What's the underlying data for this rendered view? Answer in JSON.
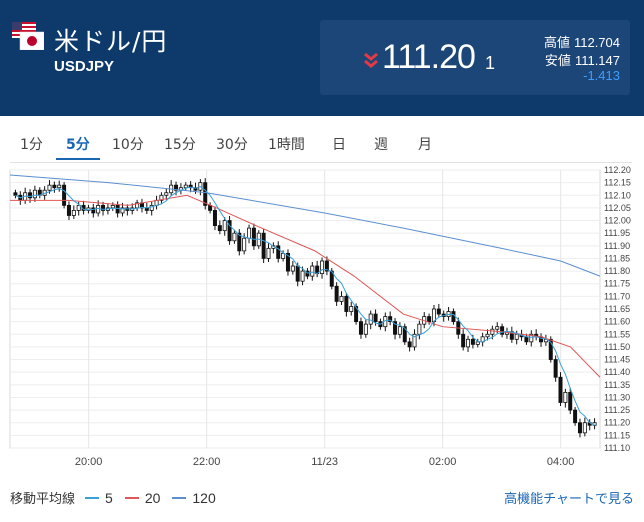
{
  "header": {
    "title": "米ドル/円",
    "code": "USDJPY",
    "flag_icon": "us-jp-flag-icon",
    "price_main": "111.20",
    "price_small": "1",
    "direction_icon": "double-chevron-down-icon",
    "high_label": "高値",
    "high_value": "112.704",
    "low_label": "安値",
    "low_value": "111.147",
    "change": "-1.413",
    "colors": {
      "background": "#0d3a6b",
      "panel": "#1c4677",
      "down": "#e63946",
      "change": "#3d9cff"
    }
  },
  "tabs": [
    {
      "label": "1分",
      "active": false
    },
    {
      "label": "5分",
      "active": true
    },
    {
      "label": "10分",
      "active": false
    },
    {
      "label": "15分",
      "active": false
    },
    {
      "label": "30分",
      "active": false
    },
    {
      "label": "1時間",
      "active": false
    },
    {
      "label": "日",
      "active": false
    },
    {
      "label": "週",
      "active": false
    },
    {
      "label": "月",
      "active": false
    }
  ],
  "chart_data": {
    "type": "candlestick",
    "y_ticks": [
      "112.20",
      "112.15",
      "112.10",
      "112.05",
      "112.00",
      "111.95",
      "111.90",
      "111.85",
      "111.80",
      "111.75",
      "111.70",
      "111.65",
      "111.60",
      "111.55",
      "111.50",
      "111.45",
      "111.40",
      "111.35",
      "111.30",
      "111.25",
      "111.20",
      "111.15",
      "111.10"
    ],
    "ylim": [
      111.1,
      112.2
    ],
    "x_ticks": [
      {
        "label": "20:00",
        "t": 16
      },
      {
        "label": "22:00",
        "t": 40
      },
      {
        "label": "11/23",
        "t": 64
      },
      {
        "label": "02:00",
        "t": 88
      },
      {
        "label": "04:00",
        "t": 112
      }
    ],
    "t_range": [
      0,
      120
    ],
    "grid": true,
    "colors": {
      "ma5": "#3aa0d8",
      "ma20": "#e05555",
      "ma120": "#5b8fd0"
    },
    "candles": {
      "closes": [
        112.1,
        112.08,
        112.11,
        112.09,
        112.12,
        112.1,
        112.12,
        112.14,
        112.13,
        112.14,
        112.06,
        112.02,
        112.04,
        112.06,
        112.04,
        112.05,
        112.03,
        112.06,
        112.04,
        112.05,
        112.06,
        112.03,
        112.05,
        112.04,
        112.05,
        112.07,
        112.05,
        112.04,
        112.06,
        112.08,
        112.1,
        112.11,
        112.14,
        112.12,
        112.13,
        112.14,
        112.13,
        112.12,
        112.15,
        112.06,
        112.04,
        111.98,
        111.96,
        112.0,
        111.92,
        111.95,
        111.88,
        111.93,
        111.97,
        111.9,
        111.95,
        111.85,
        111.89,
        111.9,
        111.85,
        111.87,
        111.8,
        111.82,
        111.76,
        111.8,
        111.78,
        111.82,
        111.79,
        111.84,
        111.8,
        111.74,
        111.68,
        111.7,
        111.64,
        111.66,
        111.6,
        111.55,
        111.59,
        111.63,
        111.6,
        111.58,
        111.62,
        111.6,
        111.55,
        111.58,
        111.52,
        111.5,
        111.55,
        111.59,
        111.62,
        111.6,
        111.65,
        111.63,
        111.62,
        111.64,
        111.6,
        111.55,
        111.5,
        111.53,
        111.51,
        111.52,
        111.54,
        111.55,
        111.57,
        111.58,
        111.55,
        111.56,
        111.53,
        111.55,
        111.54,
        111.52,
        111.55,
        111.54,
        111.52,
        111.53,
        111.45,
        111.38,
        111.28,
        111.32,
        111.25,
        111.2,
        111.16,
        111.2,
        111.19,
        111.2
      ]
    },
    "ma120": [
      [
        0,
        112.18
      ],
      [
        20,
        112.15
      ],
      [
        40,
        112.11
      ],
      [
        64,
        112.03
      ],
      [
        80,
        111.97
      ],
      [
        100,
        111.89
      ],
      [
        112,
        111.84
      ],
      [
        120,
        111.78
      ]
    ],
    "ma20": [
      [
        0,
        112.08
      ],
      [
        12,
        112.08
      ],
      [
        24,
        112.06
      ],
      [
        36,
        112.1
      ],
      [
        42,
        112.05
      ],
      [
        50,
        111.98
      ],
      [
        62,
        111.88
      ],
      [
        70,
        111.78
      ],
      [
        80,
        111.63
      ],
      [
        88,
        111.58
      ],
      [
        100,
        111.56
      ],
      [
        108,
        111.54
      ],
      [
        114,
        111.5
      ],
      [
        120,
        111.38
      ]
    ]
  },
  "legend": {
    "label": "移動平均線",
    "items": [
      {
        "name": "5",
        "color": "#3aa0d8"
      },
      {
        "name": "20",
        "color": "#e05555"
      },
      {
        "name": "120",
        "color": "#5b8fd0"
      }
    ]
  },
  "more_link": "高機能チャートで見る"
}
